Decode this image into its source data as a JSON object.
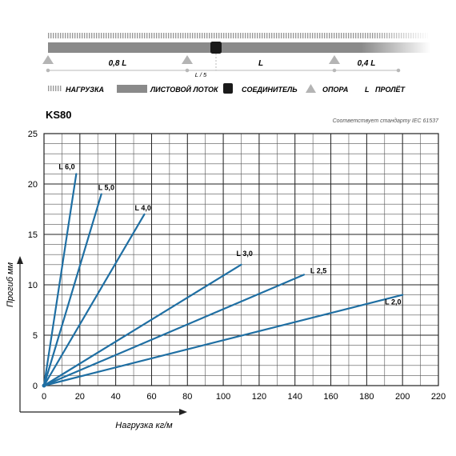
{
  "diagram": {
    "segments": [
      "0,8 L",
      "L",
      "0,4 L"
    ],
    "joint_label": "L / 5"
  },
  "legend": [
    {
      "icon": "load-hatch-icon",
      "label": "НАГРУЗКА"
    },
    {
      "icon": "tray-bar-icon",
      "label": "ЛИСТОВОЙ ЛОТОК"
    },
    {
      "icon": "connector-square-icon",
      "label": "СОЕДИНИТЕЛЬ"
    },
    {
      "icon": "support-triangle-icon",
      "label": "ОПОРА"
    },
    {
      "icon": "span-letter-icon",
      "symbol": "L",
      "label": "ПРОЛЁТ"
    }
  ],
  "model": "KS80",
  "standard_note": "Соответствует стандарту IEC 61537",
  "colors": {
    "line": "#1f6fa3",
    "grid": "#555555",
    "tray": "#8a8a8a",
    "support": "#b4b4b4"
  },
  "chart_data": {
    "type": "line",
    "xlabel": "Нагрузка кг/м",
    "ylabel": "Прогиб мм",
    "xlim": [
      0,
      220
    ],
    "ylim": [
      0,
      25
    ],
    "xticks": [
      "0",
      "20",
      "40",
      "60",
      "80",
      "100",
      "120",
      "140",
      "160",
      "180",
      "200",
      "220"
    ],
    "yticks": [
      "0",
      "5",
      "10",
      "15",
      "20",
      "25"
    ],
    "grid": true,
    "series": [
      {
        "name": "L 6,0",
        "x": [
          0,
          18
        ],
        "y": [
          0,
          21
        ]
      },
      {
        "name": "L 5,0",
        "x": [
          0,
          32
        ],
        "y": [
          0,
          19
        ]
      },
      {
        "name": "L 4,0",
        "x": [
          0,
          56
        ],
        "y": [
          0,
          17
        ]
      },
      {
        "name": "L 3,0",
        "x": [
          0,
          110
        ],
        "y": [
          0,
          12
        ]
      },
      {
        "name": "L 2,5",
        "x": [
          0,
          145
        ],
        "y": [
          0,
          11
        ]
      },
      {
        "name": "L 2,0",
        "x": [
          0,
          200
        ],
        "y": [
          0,
          9
        ]
      }
    ]
  }
}
